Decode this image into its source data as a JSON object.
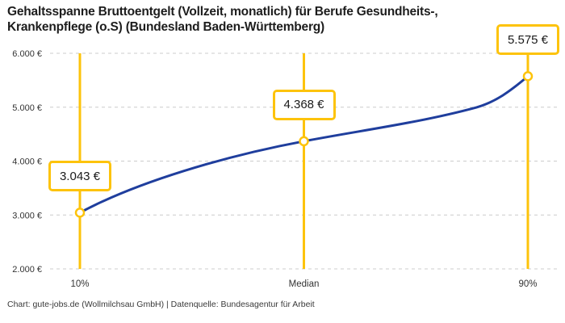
{
  "header": {
    "title_lines": [
      "Gehaltsspanne Bruttoentgelt (Vollzeit, monatlich) für Berufe Gesundheits-,",
      "Krankenpflege (o.S) (Bundesland Baden-Württemberg)"
    ]
  },
  "footer": {
    "credit": "Chart: gute-jobs.de (Wollmilchsau GmbH) | Datenquelle: Bundesagentur für Arbeit"
  },
  "chart_data": {
    "type": "line",
    "title": "Gehaltsspanne Bruttoentgelt (Vollzeit, monatlich) für Berufe Gesundheits-, Krankenpflege (o.S) (Bundesland Baden-Württemberg)",
    "x_percentiles": [
      10,
      50,
      90
    ],
    "categories": [
      "10%",
      "Median",
      "90%"
    ],
    "values": [
      3043,
      4368,
      5575
    ],
    "value_labels": [
      "3.043 €",
      "4.368 €",
      "5.575 €"
    ],
    "ylim": [
      2000,
      6000
    ],
    "yticks": {
      "values": [
        2000,
        3000,
        4000,
        5000,
        6000
      ],
      "labels": [
        "2.000 €",
        "3.000 €",
        "4.000 €",
        "5.000 €",
        "6.000 €"
      ]
    },
    "xlabel": "",
    "ylabel": "",
    "grid": "horizontal-dashed",
    "legend": "none",
    "colors": {
      "line": "#1f3e9d",
      "accent": "#fdc30b",
      "grid": "#cccccc",
      "marker_fill": "#ffffff",
      "tick_text": "#333333"
    }
  }
}
